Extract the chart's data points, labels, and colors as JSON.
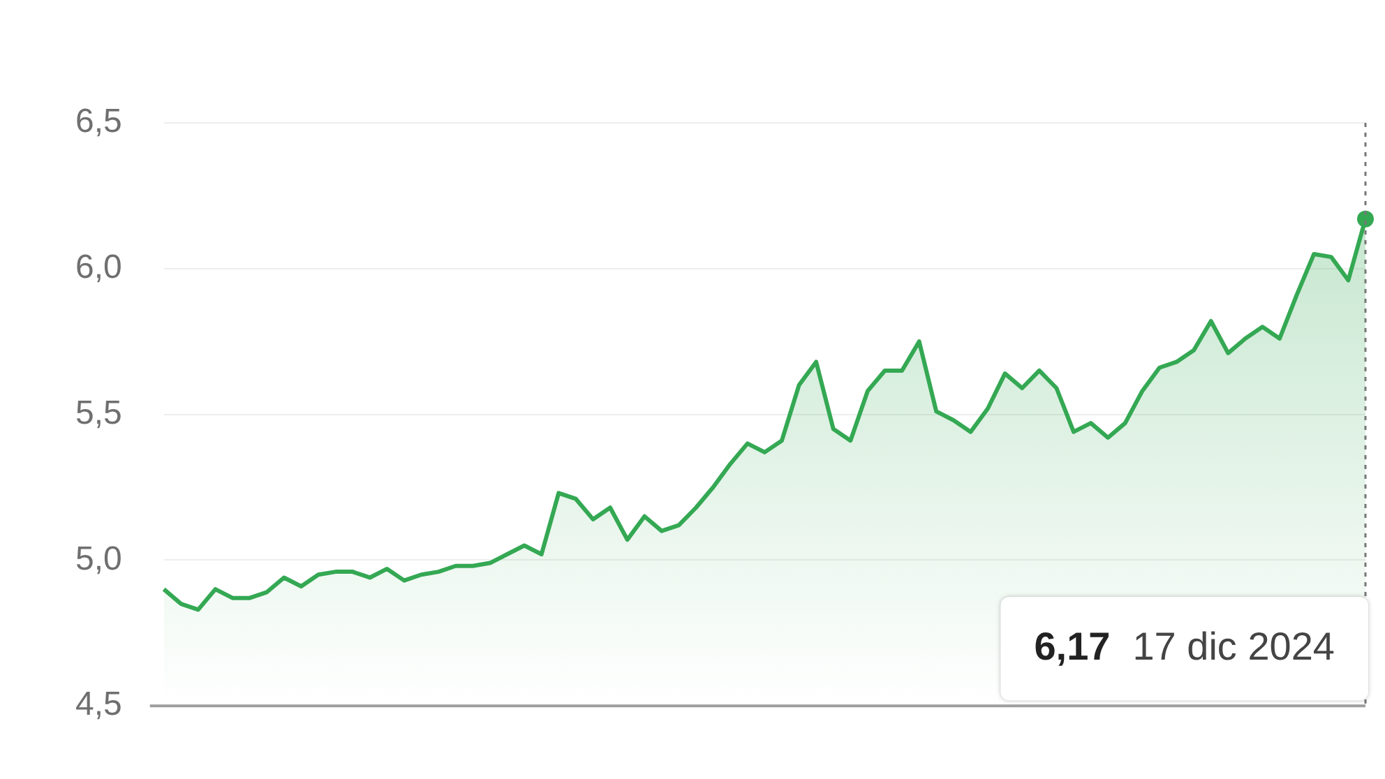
{
  "chart_data": {
    "type": "area",
    "categories": [
      null,
      null,
      null,
      null,
      null,
      null,
      null,
      null,
      null,
      null,
      null,
      null,
      null,
      null,
      null,
      null,
      null,
      null,
      null,
      null,
      null,
      null,
      null,
      null,
      null,
      null,
      null,
      null,
      null,
      null,
      null,
      null,
      null,
      null,
      null,
      null,
      null,
      null,
      null,
      null,
      null,
      null,
      null,
      null,
      null,
      null,
      null,
      null,
      null,
      null,
      null,
      null,
      null,
      null,
      null,
      null,
      null,
      null,
      null,
      null,
      null,
      null,
      null,
      null,
      null,
      null,
      null,
      null,
      null,
      null,
      null
    ],
    "series": [
      {
        "color": "#34a853",
        "values": [
          4.9,
          4.85,
          4.83,
          4.9,
          4.87,
          4.87,
          4.89,
          4.94,
          4.91,
          4.95,
          4.96,
          4.96,
          4.94,
          4.97,
          4.93,
          4.95,
          4.96,
          4.98,
          4.98,
          4.99,
          5.02,
          5.05,
          5.02,
          5.23,
          5.21,
          5.14,
          5.18,
          5.07,
          5.15,
          5.1,
          5.12,
          5.18,
          5.25,
          5.33,
          5.4,
          5.37,
          5.41,
          5.6,
          5.68,
          5.45,
          5.41,
          5.58,
          5.65,
          5.65,
          5.75,
          5.51,
          5.48,
          5.44,
          5.52,
          5.64,
          5.59,
          5.65,
          5.59,
          5.44,
          5.47,
          5.42,
          5.47,
          5.58,
          5.66,
          5.68,
          5.72,
          5.82,
          5.71,
          5.76,
          5.8,
          5.76,
          5.91,
          6.05,
          6.04,
          5.96,
          6.17
        ]
      }
    ],
    "ylim": [
      4.5,
      6.5
    ],
    "yticks": [
      {
        "value": 4.5,
        "label": "4,5"
      },
      {
        "value": 5.0,
        "label": "5,0"
      },
      {
        "value": 5.5,
        "label": "5,5"
      },
      {
        "value": 6.0,
        "label": "6,0"
      },
      {
        "value": 6.5,
        "label": "6,5"
      }
    ],
    "grid": "y",
    "legend": false,
    "marker": "none",
    "line_style": "solid",
    "annotations": [
      "6,17  17 dic 2024"
    ]
  }
}
